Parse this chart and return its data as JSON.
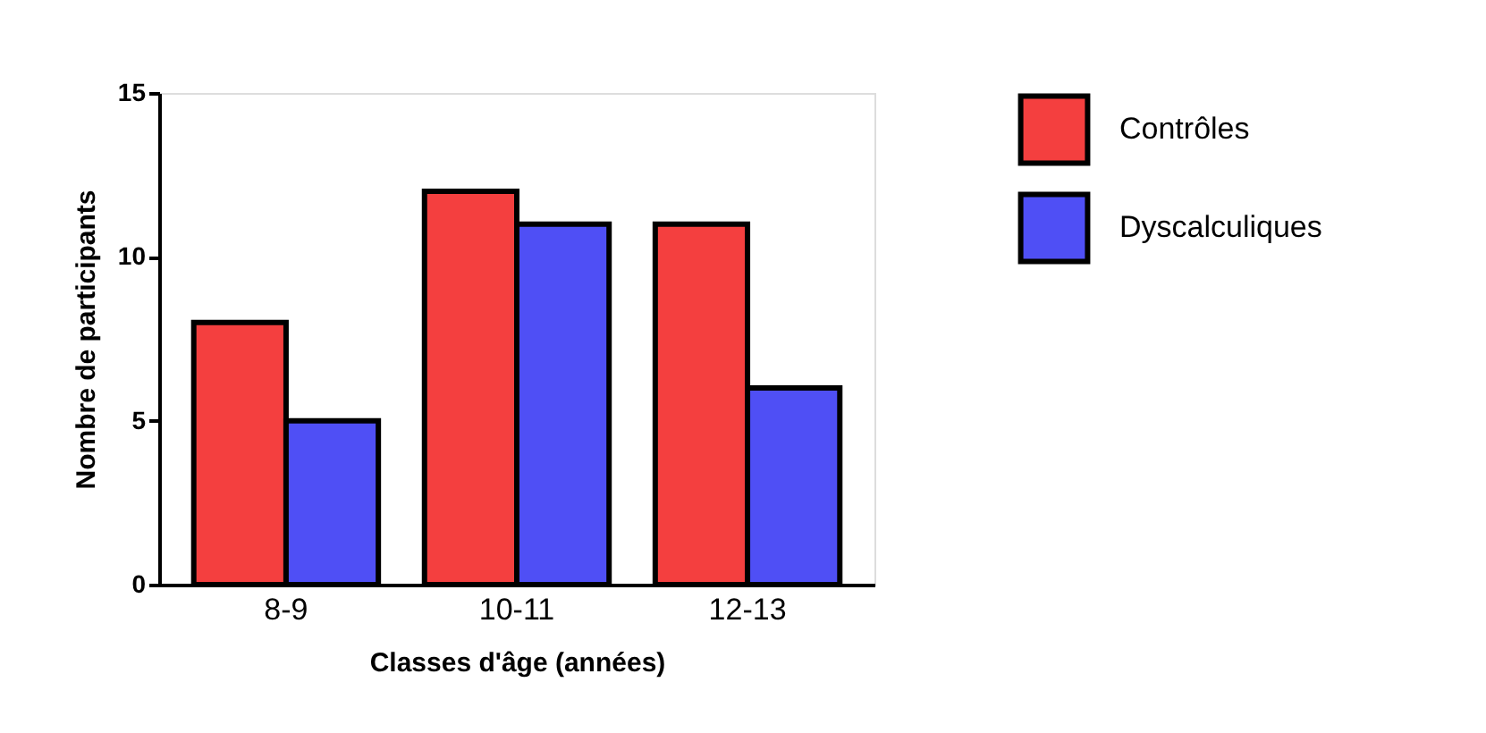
{
  "chart_data": {
    "type": "bar",
    "xlabel": "Classes d'âge (années)",
    "ylabel": "Nombre de participants",
    "categories": [
      "8-9",
      "10-11",
      "12-13"
    ],
    "series": [
      {
        "name": "Contrôles",
        "color": "#f43f3f",
        "values": [
          8,
          12,
          11
        ]
      },
      {
        "name": "Dyscalculiques",
        "color": "#4f4ff5",
        "values": [
          5,
          11,
          6
        ]
      }
    ],
    "ylim": [
      0,
      15
    ],
    "yticks": [
      0,
      5,
      10,
      15
    ],
    "grid": false,
    "legend": "top right"
  }
}
